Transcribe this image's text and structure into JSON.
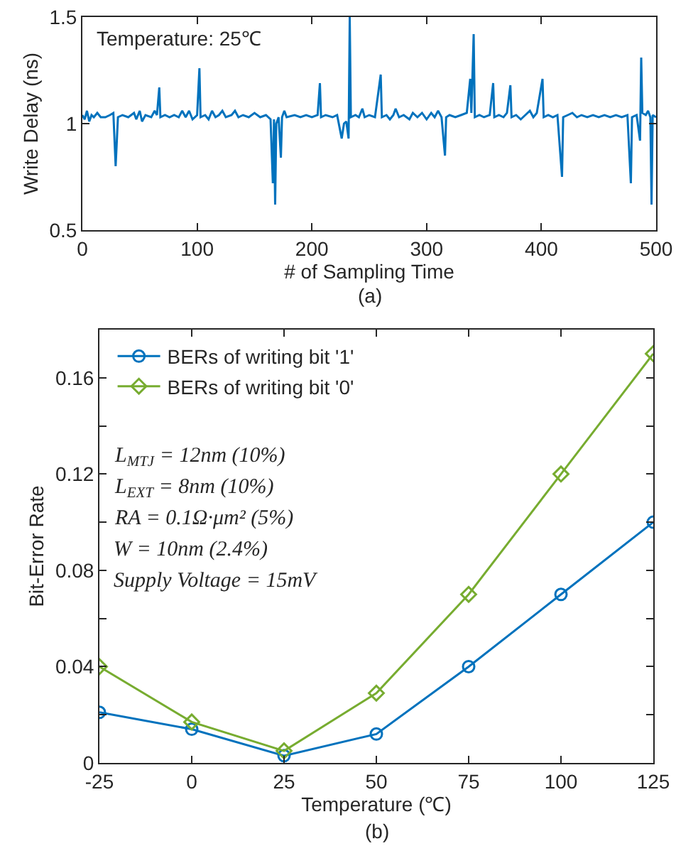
{
  "chart_data": [
    {
      "type": "line",
      "xlabel": "# of Sampling Time",
      "ylabel": "Write Delay (ns)",
      "xlim": [
        0,
        500
      ],
      "xticks": [
        0,
        100,
        200,
        300,
        400,
        500
      ],
      "ylim": [
        0.5,
        1.5
      ],
      "yticks": [
        0.5,
        1,
        1.5
      ],
      "grid": false,
      "legend": false,
      "marker": "none",
      "line_style": "solid",
      "annotations": [
        "Temperature: 25℃",
        "(a)"
      ],
      "series": [
        {
          "color": "#0072bd",
          "x": [
            0,
            2,
            4,
            6,
            8,
            10,
            13,
            16,
            20,
            24,
            27,
            29,
            31,
            35,
            40,
            45,
            47,
            50,
            52,
            55,
            60,
            63,
            65,
            67,
            68,
            72,
            76,
            80,
            84,
            87,
            90,
            93,
            96,
            100,
            102,
            103,
            107,
            110,
            113,
            116,
            119,
            122,
            125,
            130,
            133,
            136,
            140,
            145,
            150,
            155,
            160,
            164,
            166,
            167,
            168,
            169,
            171,
            173,
            174,
            176,
            178,
            185,
            190,
            195,
            200,
            205,
            207,
            208,
            212,
            218,
            222,
            226,
            228,
            230,
            232,
            233,
            234,
            238,
            241,
            244,
            246,
            250,
            255,
            260,
            261,
            265,
            268,
            271,
            273,
            276,
            280,
            285,
            288,
            292,
            296,
            300,
            304,
            307,
            310,
            313,
            316,
            317,
            320,
            325,
            330,
            335,
            338,
            339,
            341,
            342,
            346,
            350,
            355,
            358,
            359,
            363,
            367,
            370,
            373,
            374,
            378,
            382,
            386,
            390,
            393,
            396,
            401,
            402,
            406,
            410,
            414,
            418,
            419,
            423,
            427,
            431,
            435,
            440,
            445,
            450,
            455,
            460,
            465,
            470,
            475,
            478,
            479,
            483,
            486,
            487,
            488,
            491,
            493,
            495,
            496,
            497,
            500
          ],
          "values": [
            1.04,
            1.02,
            1.06,
            1.01,
            1.04,
            1.03,
            1.05,
            1.03,
            1.03,
            1.04,
            1.05,
            0.8,
            1.03,
            1.04,
            1.03,
            1.05,
            1.02,
            1.06,
            1.01,
            1.04,
            1.03,
            1.06,
            1.04,
            1.17,
            1.03,
            1.04,
            1.03,
            1.04,
            1.03,
            1.06,
            1.03,
            1.06,
            1.02,
            1.04,
            1.26,
            1.03,
            1.04,
            1.02,
            1.06,
            1.03,
            1.04,
            1.06,
            1.03,
            1.04,
            1.06,
            1.03,
            1.04,
            1.03,
            1.05,
            1.03,
            1.04,
            1.02,
            0.72,
            1.02,
            0.62,
            1.0,
            1.03,
            0.84,
            1.03,
            1.06,
            1.03,
            1.04,
            1.03,
            1.04,
            1.03,
            1.04,
            1.19,
            1.03,
            1.04,
            1.03,
            1.04,
            0.93,
            1.0,
            1.01,
            0.93,
            1.5,
            1.03,
            1.04,
            1.03,
            1.07,
            1.03,
            1.04,
            1.03,
            1.23,
            1.03,
            1.04,
            1.02,
            1.04,
            1.07,
            1.03,
            1.04,
            1.02,
            1.05,
            1.03,
            1.05,
            1.02,
            1.05,
            1.03,
            1.06,
            1.03,
            0.85,
            1.03,
            1.04,
            1.03,
            1.04,
            1.05,
            1.21,
            1.05,
            1.42,
            1.03,
            1.04,
            1.03,
            1.04,
            1.19,
            1.03,
            1.04,
            1.03,
            1.05,
            1.18,
            1.03,
            1.04,
            1.02,
            1.04,
            1.06,
            1.03,
            1.05,
            1.21,
            1.03,
            1.04,
            1.03,
            1.04,
            0.75,
            1.03,
            1.04,
            1.05,
            1.03,
            1.04,
            1.03,
            1.04,
            1.03,
            1.04,
            1.03,
            1.04,
            1.03,
            1.04,
            0.72,
            1.03,
            1.04,
            0.92,
            1.31,
            1.05,
            1.04,
            1.06,
            1.03,
            0.62,
            1.04,
            1.03
          ]
        }
      ]
    },
    {
      "type": "line",
      "xlabel": "Temperature (℃)",
      "ylabel": "Bit-Error Rate",
      "x": [
        -25,
        0,
        25,
        50,
        75,
        100,
        125
      ],
      "xlim": [
        -25,
        125
      ],
      "xticks": [
        -25,
        0,
        25,
        50,
        75,
        100,
        125
      ],
      "ylim": [
        0,
        0.18
      ],
      "yticks": [
        0,
        {
          "value": 0.02,
          "label": null
        },
        0.04,
        {
          "value": 0.06,
          "label": null
        },
        0.08,
        {
          "value": 0.1,
          "label": null
        },
        0.12,
        {
          "value": 0.14,
          "label": null
        },
        0.16
      ],
      "grid": false,
      "legend": "top left",
      "line_style": "solid",
      "annotations": [
        "L$_{MTJ}$ = 12nm (10%)",
        "L$_{EXT}$ = 8nm (10%)",
        "RA = 0.1Ω·μm² (5%)",
        "W = 10nm (2.4%)",
        "Supply Voltage = 15mV",
        "(b)"
      ],
      "series": [
        {
          "name": "BERs of writing bit '1'",
          "color": "#0072bd",
          "marker": "circle",
          "values": [
            0.021,
            0.014,
            0.003,
            0.012,
            0.04,
            0.07,
            0.1
          ]
        },
        {
          "name": "BERs of writing bit '0'",
          "color": "#77ac30",
          "marker": "diamond",
          "values": [
            0.04,
            0.017,
            0.005,
            0.029,
            0.07,
            0.12,
            0.17
          ]
        }
      ]
    }
  ]
}
